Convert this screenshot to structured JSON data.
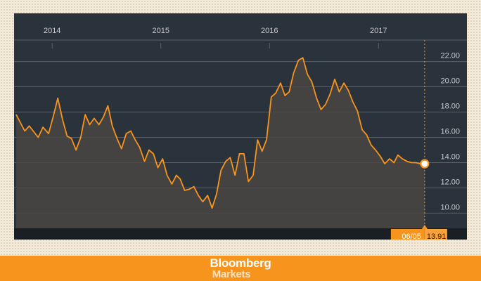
{
  "chart_data": {
    "type": "area",
    "title": "",
    "xlabel": "",
    "ylabel": "",
    "x_tick_labels": [
      "2014",
      "2015",
      "2016",
      "2017"
    ],
    "y_ticks": [
      10,
      12,
      14,
      16,
      18,
      20,
      22
    ],
    "y_tick_labels": [
      "10.00",
      "12.00",
      "14.00",
      "16.00",
      "18.00",
      "20.00",
      "22.00"
    ],
    "ylim": [
      8.8,
      23.7
    ],
    "xlim": [
      "2013-08-26",
      "2017-10-25"
    ],
    "grid": true,
    "legend": "none",
    "series": [
      {
        "x": [
          "2013-09-02",
          "2013-10-01",
          "2013-10-16",
          "2013-11-15",
          "2013-12-01",
          "2013-12-20",
          "2014-01-04",
          "2014-01-20",
          "2014-02-05",
          "2014-02-20",
          "2014-03-07",
          "2014-03-22",
          "2014-04-07",
          "2014-04-22",
          "2014-05-07",
          "2014-05-22",
          "2014-06-07",
          "2014-06-22",
          "2014-07-07",
          "2014-07-22",
          "2014-08-07",
          "2014-08-22",
          "2014-09-07",
          "2014-09-22",
          "2014-10-07",
          "2014-10-22",
          "2014-11-07",
          "2014-11-22",
          "2014-12-07",
          "2014-12-22",
          "2015-01-07",
          "2015-01-22",
          "2015-02-07",
          "2015-02-22",
          "2015-03-07",
          "2015-03-22",
          "2015-04-07",
          "2015-04-22",
          "2015-05-07",
          "2015-05-22",
          "2015-06-07",
          "2015-06-22",
          "2015-07-07",
          "2015-07-22",
          "2015-08-07",
          "2015-08-22",
          "2015-09-07",
          "2015-09-22",
          "2015-10-07",
          "2015-10-22",
          "2015-11-07",
          "2015-11-22",
          "2015-12-07",
          "2015-12-22",
          "2016-01-07",
          "2016-01-22",
          "2016-02-07",
          "2016-02-22",
          "2016-03-07",
          "2016-03-22",
          "2016-04-07",
          "2016-04-22",
          "2016-05-07",
          "2016-05-22",
          "2016-06-07",
          "2016-06-22",
          "2016-07-07",
          "2016-07-22",
          "2016-08-07",
          "2016-08-22",
          "2016-09-07",
          "2016-09-22",
          "2016-10-07",
          "2016-10-22",
          "2016-11-07",
          "2016-11-22",
          "2016-12-07",
          "2016-12-22",
          "2017-01-07",
          "2017-01-22",
          "2017-02-07",
          "2017-02-22",
          "2017-03-07",
          "2017-03-22",
          "2017-04-07",
          "2017-04-22",
          "2017-05-07",
          "2017-05-22",
          "2017-06-05"
        ],
        "values": [
          17.8,
          16.5,
          16.9,
          16.0,
          16.8,
          16.3,
          17.6,
          19.1,
          17.4,
          16.1,
          15.9,
          15.0,
          16.0,
          17.8,
          17.0,
          17.5,
          17.0,
          17.6,
          18.5,
          16.9,
          15.9,
          15.1,
          16.3,
          16.5,
          15.8,
          15.2,
          14.1,
          15.0,
          14.7,
          13.6,
          14.3,
          13.0,
          12.3,
          13.0,
          12.7,
          11.8,
          11.9,
          12.1,
          11.4,
          10.9,
          11.4,
          10.4,
          11.5,
          13.4,
          14.1,
          14.4,
          13.0,
          14.7,
          14.7,
          12.5,
          13.0,
          15.8,
          14.9,
          15.8,
          19.2,
          19.5,
          20.3,
          19.3,
          19.6,
          21.1,
          22.1,
          22.3,
          21.0,
          20.4,
          19.1,
          18.2,
          18.6,
          19.4,
          20.6,
          19.6,
          20.3,
          19.7,
          18.8,
          18.1,
          16.6,
          16.2,
          15.4,
          15.0,
          14.5,
          13.91,
          14.3,
          14.0,
          14.6,
          14.3,
          14.1,
          14.0,
          14.0,
          13.9,
          13.91
        ]
      }
    ],
    "last_point": {
      "date_label": "06/05",
      "value_label": "13.91",
      "value": 13.91
    },
    "colors": {
      "plot_background": "#2a323c",
      "line": "#f7941d",
      "area_fill": "#4a4543",
      "grid": "#59606a",
      "label_box": "#f7941d"
    }
  },
  "brand": {
    "name": "Bloomberg",
    "product": "Markets"
  }
}
